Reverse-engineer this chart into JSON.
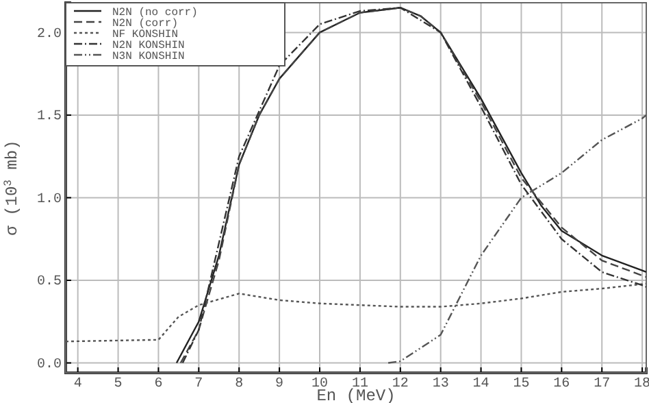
{
  "chart_data": {
    "type": "line",
    "xlabel": "En (MeV)",
    "ylabel": "σ (10$^{3}$ mb)",
    "xlim": [
      3.7,
      18.1
    ],
    "ylim": [
      -0.06,
      2.18
    ],
    "xticks": [
      4,
      5,
      6,
      7,
      8,
      9,
      10,
      11,
      12,
      13,
      14,
      15,
      16,
      17,
      18
    ],
    "yticks": [
      {
        "value": 0,
        "label": "0.0"
      },
      {
        "value": 0.5,
        "label": "0.5"
      },
      {
        "value": 1,
        "label": "1.0"
      },
      {
        "value": 1.5,
        "label": "1.5"
      },
      {
        "value": 2,
        "label": "2.0"
      }
    ],
    "grid": true,
    "legend": "top left",
    "series": [
      {
        "name": "N2N (no corr)",
        "color": "#222222",
        "line_style": "solid",
        "x": [
          6.45,
          7,
          7.5,
          8,
          8.5,
          9,
          10,
          11,
          12,
          12.5,
          13,
          14,
          15,
          15.5,
          16,
          17,
          18,
          18.1
        ],
        "values": [
          0,
          0.25,
          0.65,
          1.2,
          1.5,
          1.72,
          2.0,
          2.12,
          2.15,
          2.1,
          2.0,
          1.6,
          1.15,
          0.95,
          0.8,
          0.65,
          0.56,
          0.55
        ]
      },
      {
        "name": "N2N (corr)",
        "color": "#444444",
        "line_style": "dashed",
        "x": [
          6.55,
          7,
          7.5,
          8,
          8.5,
          9,
          10,
          11,
          12,
          12.5,
          13,
          14,
          15,
          16,
          17,
          18.1
        ],
        "values": [
          0,
          0.2,
          0.62,
          1.2,
          1.5,
          1.72,
          2.0,
          2.12,
          2.15,
          2.1,
          2.0,
          1.58,
          1.12,
          0.82,
          0.62,
          0.52
        ]
      },
      {
        "name": "NF KONSHIN",
        "color": "#555555",
        "line_style": "dotted",
        "x": [
          3.7,
          6,
          6.5,
          7,
          8,
          9,
          10,
          11,
          12,
          13,
          14,
          15,
          16,
          17,
          18.1
        ],
        "values": [
          0.13,
          0.14,
          0.28,
          0.35,
          0.42,
          0.38,
          0.36,
          0.35,
          0.34,
          0.34,
          0.36,
          0.39,
          0.43,
          0.45,
          0.48
        ]
      },
      {
        "name": "N2N KONSHIN",
        "color": "#333333",
        "line_style": "dashdot",
        "x": [
          6.6,
          7,
          8,
          9,
          10,
          11,
          12,
          13,
          14,
          15,
          16,
          17,
          18,
          18.1
        ],
        "values": [
          0,
          0.2,
          1.25,
          1.8,
          2.05,
          2.13,
          2.15,
          2.0,
          1.55,
          1.08,
          0.75,
          0.55,
          0.47,
          0.46
        ]
      },
      {
        "name": "N3N KONSHIN",
        "color": "#555555",
        "line_style": "dashdotdot",
        "x": [
          11.7,
          12,
          13,
          14,
          15,
          16,
          17,
          18,
          18.1
        ],
        "values": [
          0,
          0.01,
          0.17,
          0.65,
          1.0,
          1.15,
          1.35,
          1.48,
          1.5
        ]
      }
    ]
  }
}
